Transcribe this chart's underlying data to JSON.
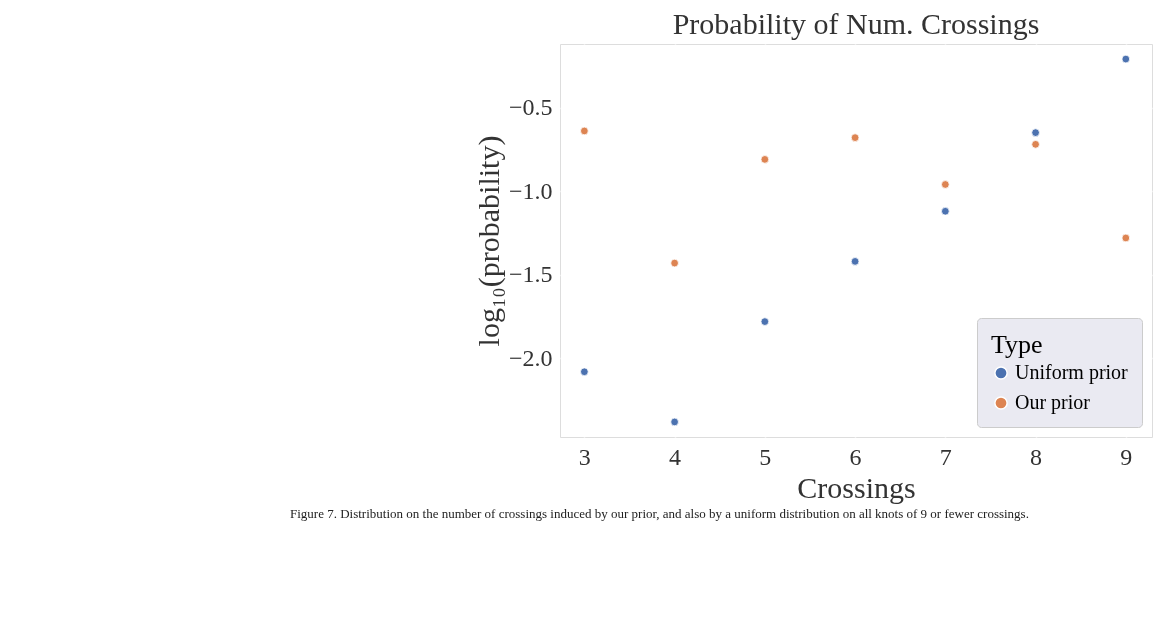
{
  "chart_data": {
    "type": "scatter",
    "title": "Probability of Num. Crossings",
    "xlabel": "Crossings",
    "ylabel": "log₁₀(probability)",
    "legend_title": "Type",
    "x": [
      3,
      4,
      5,
      6,
      7,
      8,
      9
    ],
    "series": [
      {
        "name": "Uniform prior",
        "color": "#4c72b0",
        "values": [
          -2.08,
          -2.38,
          -1.78,
          -1.42,
          -1.12,
          -0.65,
          -0.21
        ]
      },
      {
        "name": "Our prior",
        "color": "#dd8452",
        "values": [
          -0.64,
          -1.43,
          -0.81,
          -0.68,
          -0.96,
          -0.72,
          -1.28
        ]
      }
    ],
    "xlim": [
      2.73,
      9.29
    ],
    "xticks": [
      3,
      4,
      5,
      6,
      7,
      8,
      9
    ],
    "ylim": [
      -2.47,
      -0.12
    ],
    "yticks": [
      {
        "value": -2,
        "label": "−2.0"
      },
      {
        "value": -1.5,
        "label": "−1.5"
      },
      {
        "value": -1,
        "label": "−1.0"
      },
      {
        "value": -0.5,
        "label": "−0.5"
      }
    ],
    "grid": true,
    "legend": "bottom right",
    "marker": "circle",
    "annotations": [
      "Figure 7. Distribution on the number of crossings induced by our prior, and also by a uniform distribution on all knots of 9 or fewer crossings."
    ]
  }
}
